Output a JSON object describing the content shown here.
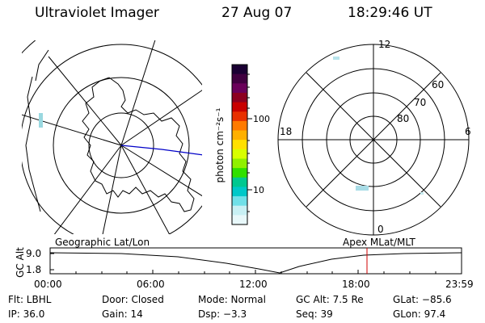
{
  "header": {
    "title": "Ultraviolet Imager",
    "date": "27 Aug 07",
    "time": "18:29:46 UT"
  },
  "colorbar": {
    "unit": "photon cm⁻²s⁻¹",
    "ticks": [
      "100",
      "10"
    ],
    "colors": [
      "#1a0033",
      "#400040",
      "#6a005a",
      "#8c0020",
      "#c80000",
      "#e83000",
      "#ff7a00",
      "#ffb000",
      "#ffe000",
      "#d8ff00",
      "#90f000",
      "#30e000",
      "#00c890",
      "#00c8c8",
      "#70e0e8",
      "#c8f0f4",
      "#e8f8fa"
    ]
  },
  "left_panel": {
    "label": "Geographic Lat/Lon"
  },
  "right_panel": {
    "label": "Apex MLat/MLT",
    "mlt_labels": [
      "12",
      "18",
      "6",
      "0"
    ],
    "lat_labels": [
      "60",
      "70",
      "80"
    ]
  },
  "strip": {
    "ylabel": "GC Alt",
    "yticks": [
      "9.0",
      "1.8"
    ],
    "xticks": [
      "00:00",
      "06:00",
      "12:00",
      "18:00",
      "23:59"
    ],
    "marker_color": "#d00000"
  },
  "info": {
    "flt": "Flt: LBHL",
    "door": "Door: Closed",
    "mode": "Mode: Normal",
    "gcalt": "GC Alt: 7.5 Re",
    "glat": "GLat: −85.6",
    "ip": "IP: 36.0",
    "gain": "Gain: 14",
    "dsp": "Dsp:    −3.3",
    "seq": "Seq: 39",
    "glon": "GLon:  97.4"
  }
}
